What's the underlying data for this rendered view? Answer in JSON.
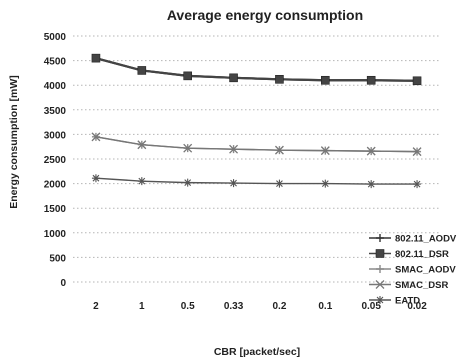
{
  "chart_data": {
    "type": "line",
    "title": "Average energy consumption",
    "xlabel": "CBR [packet/sec]",
    "ylabel": "Energy consumption [mW]",
    "categories": [
      "2",
      "1",
      "0.5",
      "0.33",
      "0.2",
      "0.1",
      "0.05",
      "0.02"
    ],
    "ylim": [
      0,
      5000
    ],
    "yticks": [
      0,
      500,
      1000,
      1500,
      2000,
      2500,
      3000,
      3500,
      4000,
      4500,
      5000
    ],
    "grid": "horizontal dashed",
    "legend_position": "bottom-right",
    "series": [
      {
        "name": "802.11_AODV",
        "values": [
          4550,
          4300,
          4190,
          4150,
          4120,
          4100,
          4100,
          4090
        ],
        "color": "#333333",
        "marker": "plus"
      },
      {
        "name": "802.11_DSR",
        "values": [
          4550,
          4300,
          4190,
          4150,
          4120,
          4100,
          4100,
          4090
        ],
        "color": "#444444",
        "marker": "square"
      },
      {
        "name": "SMAC_AODV",
        "values": [
          2950,
          2790,
          2720,
          2700,
          2680,
          2670,
          2660,
          2650
        ],
        "color": "#8a8a8a",
        "marker": "plus"
      },
      {
        "name": "SMAC_DSR",
        "values": [
          2950,
          2790,
          2720,
          2700,
          2680,
          2670,
          2660,
          2650
        ],
        "color": "#777777",
        "marker": "x"
      },
      {
        "name": "EATD",
        "values": [
          2110,
          2050,
          2020,
          2010,
          2000,
          2000,
          1990,
          1990
        ],
        "color": "#555555",
        "marker": "star"
      }
    ]
  }
}
